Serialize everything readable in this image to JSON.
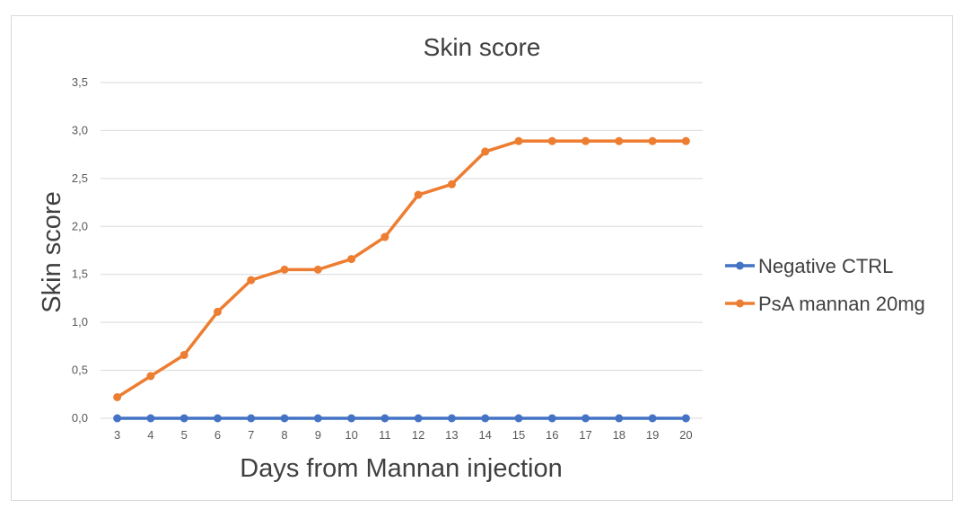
{
  "chart_data": {
    "type": "line",
    "title": "Skin score",
    "xlabel": "Days from Mannan injection",
    "ylabel": "Skin score",
    "categories": [
      "3",
      "4",
      "5",
      "6",
      "7",
      "8",
      "9",
      "10",
      "11",
      "12",
      "13",
      "14",
      "15",
      "16",
      "17",
      "18",
      "19",
      "20"
    ],
    "ylim": [
      0,
      3.5
    ],
    "ytick_values": [
      0,
      0.5,
      1.0,
      1.5,
      2.0,
      2.5,
      3.0,
      3.5
    ],
    "ytick_labels": [
      "0,0",
      "0,5",
      "1,0",
      "1,5",
      "2,0",
      "2,5",
      "3,0",
      "3,5"
    ],
    "grid": true,
    "legend_position": "right",
    "series": [
      {
        "name": "Negative CTRL",
        "color": "#4472C4",
        "values": [
          0,
          0,
          0,
          0,
          0,
          0,
          0,
          0,
          0,
          0,
          0,
          0,
          0,
          0,
          0,
          0,
          0,
          0
        ]
      },
      {
        "name": "PsA mannan 20mg",
        "color": "#ED7D31",
        "values": [
          0.22,
          0.44,
          0.66,
          1.11,
          1.44,
          1.55,
          1.55,
          1.66,
          1.89,
          2.33,
          2.44,
          2.78,
          2.89,
          2.89,
          2.89,
          2.89,
          2.89,
          2.89
        ]
      }
    ]
  }
}
